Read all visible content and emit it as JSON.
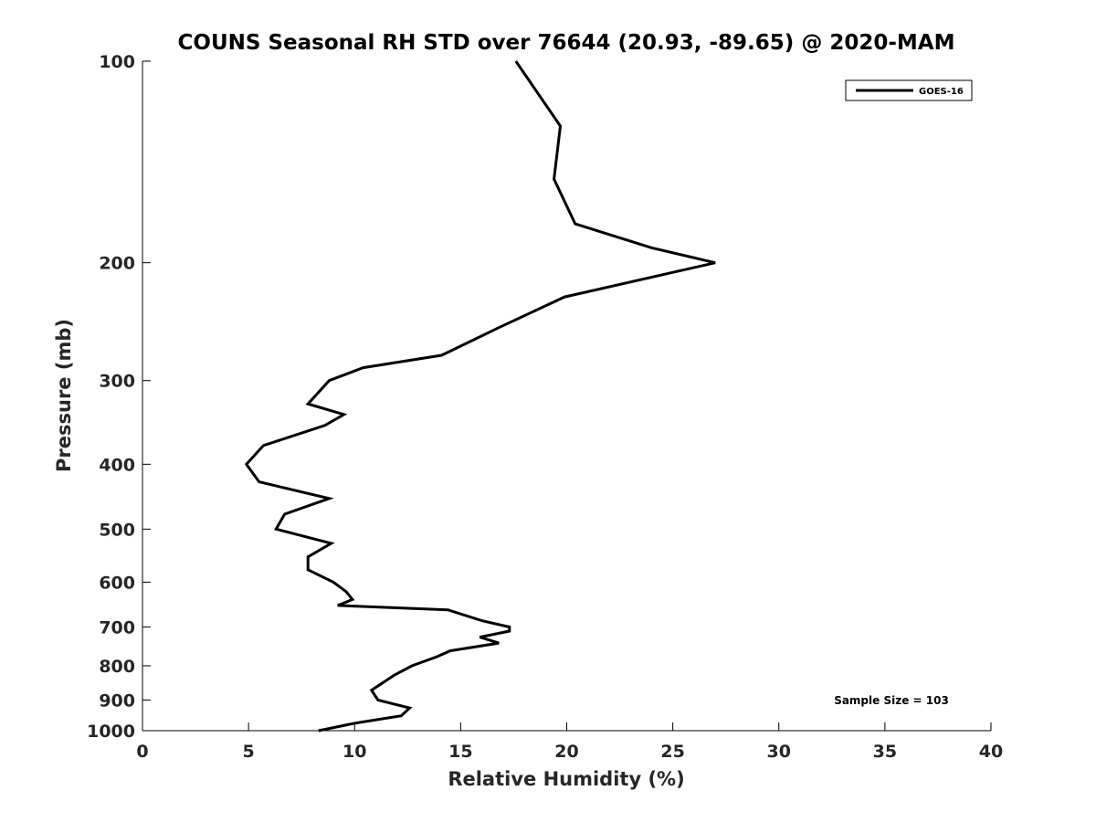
{
  "chart_data": {
    "type": "line",
    "title": "COUNS Seasonal RH STD over 76644 (20.93, -89.65) @ 2020-MAM",
    "xlabel": "Relative Humidity (%)",
    "ylabel": "Pressure (mb)",
    "xlim": [
      0,
      40
    ],
    "ylim": [
      100,
      1000
    ],
    "y_scale": "log",
    "y_reversed": true,
    "x_ticks": [
      "0",
      "5",
      "10",
      "15",
      "20",
      "25",
      "30",
      "35",
      "40"
    ],
    "y_ticks": [
      "100",
      "200",
      "300",
      "400",
      "500",
      "600",
      "700",
      "800",
      "900",
      "1000"
    ],
    "grid": false,
    "legend_position": "top-right",
    "annotation": "Sample Size = 103",
    "series": [
      {
        "name": "GOES-16",
        "color": "#000000",
        "points": [
          [
            17.6,
            100
          ],
          [
            19.7,
            125
          ],
          [
            19.4,
            150
          ],
          [
            20.4,
            175
          ],
          [
            24.0,
            190
          ],
          [
            27.0,
            200
          ],
          [
            19.9,
            225
          ],
          [
            16.8,
            250
          ],
          [
            14.1,
            275
          ],
          [
            10.4,
            287
          ],
          [
            8.8,
            300
          ],
          [
            7.8,
            325
          ],
          [
            9.5,
            337
          ],
          [
            8.6,
            350
          ],
          [
            5.7,
            375
          ],
          [
            4.9,
            400
          ],
          [
            5.5,
            425
          ],
          [
            8.8,
            450
          ],
          [
            6.7,
            475
          ],
          [
            6.3,
            500
          ],
          [
            8.9,
            525
          ],
          [
            7.8,
            550
          ],
          [
            7.8,
            575
          ],
          [
            9.0,
            600
          ],
          [
            9.6,
            620
          ],
          [
            9.9,
            637
          ],
          [
            9.2,
            650
          ],
          [
            14.4,
            660
          ],
          [
            16.0,
            685
          ],
          [
            17.3,
            700
          ],
          [
            17.3,
            710
          ],
          [
            15.9,
            725
          ],
          [
            16.8,
            740
          ],
          [
            14.5,
            760
          ],
          [
            13.9,
            775
          ],
          [
            12.7,
            800
          ],
          [
            11.9,
            825
          ],
          [
            10.8,
            870
          ],
          [
            11.1,
            900
          ],
          [
            12.6,
            925
          ],
          [
            12.2,
            950
          ],
          [
            10.0,
            975
          ],
          [
            8.3,
            1000
          ]
        ]
      }
    ]
  }
}
